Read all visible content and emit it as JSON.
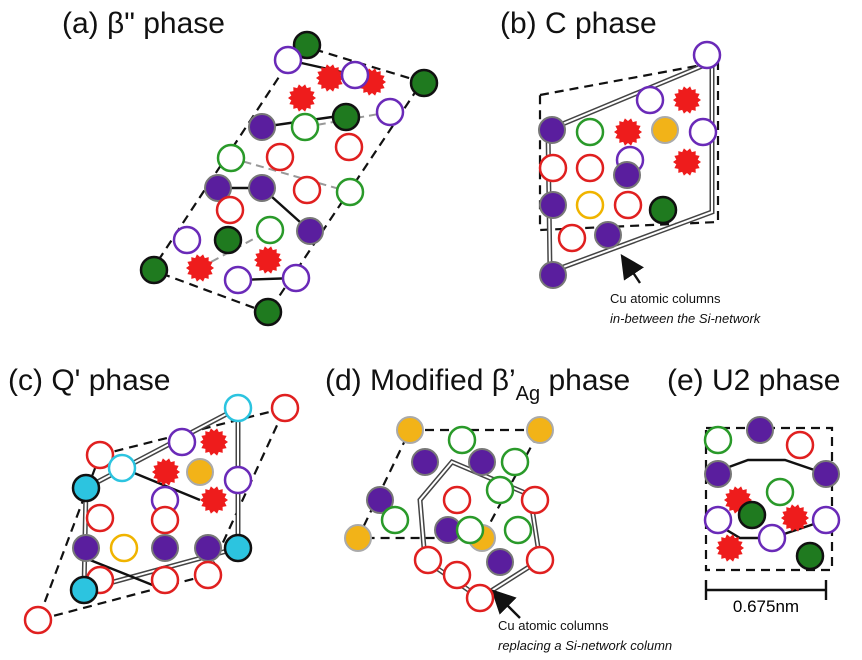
{
  "panels": [
    {
      "title": "(a) β\" phase"
    },
    {
      "title": "(b) C phase",
      "annotation": {
        "line1": "Cu atomic columns",
        "line2": "in-between the Si-network"
      }
    },
    {
      "title": "(c) Q' phase"
    },
    {
      "title": {
        "main": "(d) Modified β’",
        "sub": "Ag",
        "end": " phase"
      },
      "annotation": {
        "line1": "Cu atomic columns",
        "line2": "replacing a Si-network column"
      }
    },
    {
      "title": "(e) U2 phase",
      "scale": "0.675nm"
    }
  ]
}
